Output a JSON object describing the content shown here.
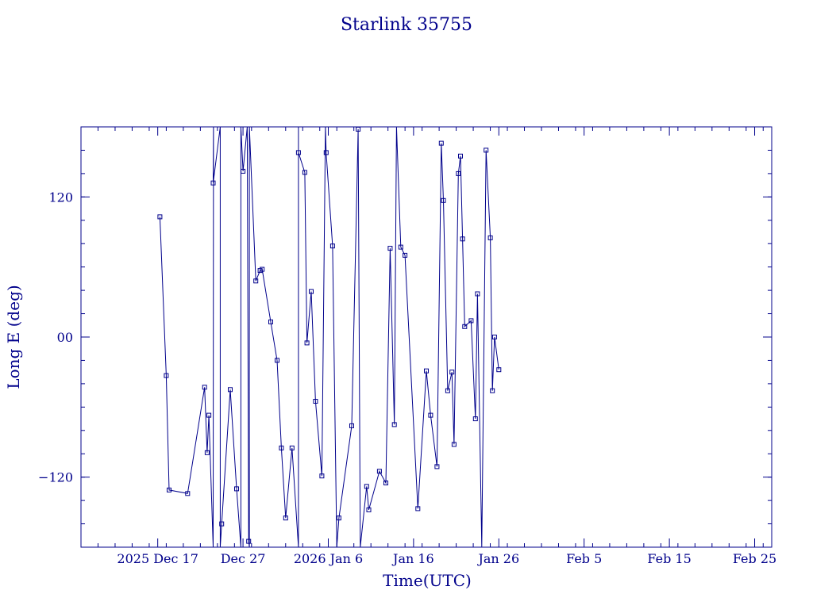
{
  "chart_data": {
    "type": "line",
    "title": "Starlink 35755",
    "xlabel": "Time(UTC)",
    "ylabel": "Long E (deg)",
    "xlim": [
      "2025-12-08",
      "2026-02-27"
    ],
    "ylim": [
      -180,
      180
    ],
    "x_ticks": [
      {
        "date": "2025-12-17",
        "label": "2025 Dec 17"
      },
      {
        "date": "2025-12-27",
        "label": "Dec 27"
      },
      {
        "date": "2026-01-06",
        "label": "2026 Jan  6"
      },
      {
        "date": "2026-01-16",
        "label": "Jan 16"
      },
      {
        "date": "2026-01-26",
        "label": "Jan 26"
      },
      {
        "date": "2026-02-05",
        "label": "Feb  5"
      },
      {
        "date": "2026-02-15",
        "label": "Feb 15"
      },
      {
        "date": "2026-02-25",
        "label": "Feb 25"
      }
    ],
    "y_ticks": [
      {
        "value": -120,
        "label": "−120"
      },
      {
        "value": 0,
        "label": "00"
      },
      {
        "value": 120,
        "label": "120"
      }
    ],
    "grid": false,
    "line_color": "#00008b",
    "series": [
      {
        "marker": "square",
        "points": [
          [
            "2025-12-17T06:00",
            103
          ],
          [
            "2025-12-18T00:00",
            -33
          ],
          [
            "2025-12-18T08:00",
            -131
          ],
          [
            "2025-12-20T12:00",
            -134
          ],
          [
            "2025-12-22T12:00",
            -43
          ],
          [
            "2025-12-22T19:00",
            -99
          ],
          [
            "2025-12-23T00:00",
            -67
          ],
          [
            "2025-12-23T12:00",
            -180
          ],
          [
            "2025-12-23T13:00",
            180
          ],
          [
            "2025-12-23T12:00",
            132
          ],
          [
            "2025-12-24T08:00",
            180
          ],
          [
            "2025-12-24T08:00",
            -180
          ],
          [
            "2025-12-24T12:00",
            -160
          ],
          [
            "2025-12-25T12:00",
            -45
          ],
          [
            "2025-12-26T06:00",
            -130
          ],
          [
            "2025-12-26T18:00",
            -180
          ],
          [
            "2025-12-26T18:00",
            180
          ],
          [
            "2025-12-27T00:00",
            142
          ],
          [
            "2025-12-27T12:00",
            180
          ],
          [
            "2025-12-27T16:00",
            -175
          ],
          [
            "2025-12-27T18:00",
            -180
          ],
          [
            "2025-12-27T18:00",
            180
          ],
          [
            "2025-12-28T12:00",
            48
          ],
          [
            "2025-12-29T00:00",
            57
          ],
          [
            "2025-12-29T06:00",
            58
          ],
          [
            "2025-12-30T06:00",
            13
          ],
          [
            "2025-12-31T00:00",
            -20
          ],
          [
            "2025-12-31T12:00",
            -95
          ],
          [
            "2026-01-01T00:00",
            -155
          ],
          [
            "2026-01-01T18:00",
            -95
          ],
          [
            "2026-01-02T12:00",
            -180
          ],
          [
            "2026-01-02T12:00",
            180
          ],
          [
            "2026-01-02T12:00",
            158
          ],
          [
            "2026-01-03T06:00",
            141
          ],
          [
            "2026-01-03T12:00",
            -5
          ],
          [
            "2026-01-04T00:00",
            39
          ],
          [
            "2026-01-04T12:00",
            -55
          ],
          [
            "2026-01-05T06:00",
            -119
          ],
          [
            "2026-01-05T16:00",
            180
          ],
          [
            "2026-01-05T18:00",
            158
          ],
          [
            "2026-01-06T12:00",
            78
          ],
          [
            "2026-01-07T00:00",
            -180
          ],
          [
            "2026-01-07T06:00",
            -155
          ],
          [
            "2026-01-08T18:00",
            -76
          ],
          [
            "2026-01-09T12:00",
            178
          ],
          [
            "2026-01-09T18:00",
            -180
          ],
          [
            "2026-01-10T12:00",
            -128
          ],
          [
            "2026-01-10T18:00",
            -148
          ],
          [
            "2026-01-12T00:00",
            -115
          ],
          [
            "2026-01-12T18:00",
            -125
          ],
          [
            "2026-01-13T06:00",
            76
          ],
          [
            "2026-01-13T18:00",
            -75
          ],
          [
            "2026-01-14T00:00",
            180
          ],
          [
            "2026-01-14T12:00",
            77
          ],
          [
            "2026-01-15T00:00",
            70
          ],
          [
            "2026-01-16T12:00",
            -147
          ],
          [
            "2026-01-17T12:00",
            -29
          ],
          [
            "2026-01-18T00:00",
            -67
          ],
          [
            "2026-01-18T18:00",
            -111
          ],
          [
            "2026-01-19T06:00",
            166
          ],
          [
            "2026-01-19T12:00",
            117
          ],
          [
            "2026-01-20T00:00",
            -46
          ],
          [
            "2026-01-20T12:00",
            -30
          ],
          [
            "2026-01-20T18:00",
            -92
          ],
          [
            "2026-01-21T06:00",
            140
          ],
          [
            "2026-01-21T12:00",
            155
          ],
          [
            "2026-01-21T18:00",
            84
          ],
          [
            "2026-01-22T00:00",
            9
          ],
          [
            "2026-01-22T18:00",
            14
          ],
          [
            "2026-01-23T06:00",
            -70
          ],
          [
            "2026-01-23T12:00",
            37
          ],
          [
            "2026-01-24T00:00",
            -180
          ],
          [
            "2026-01-24T12:00",
            160
          ],
          [
            "2026-01-25T00:00",
            85
          ],
          [
            "2026-01-25T06:00",
            -46
          ],
          [
            "2026-01-25T12:00",
            0
          ],
          [
            "2026-01-26T00:00",
            -28
          ]
        ]
      }
    ]
  }
}
